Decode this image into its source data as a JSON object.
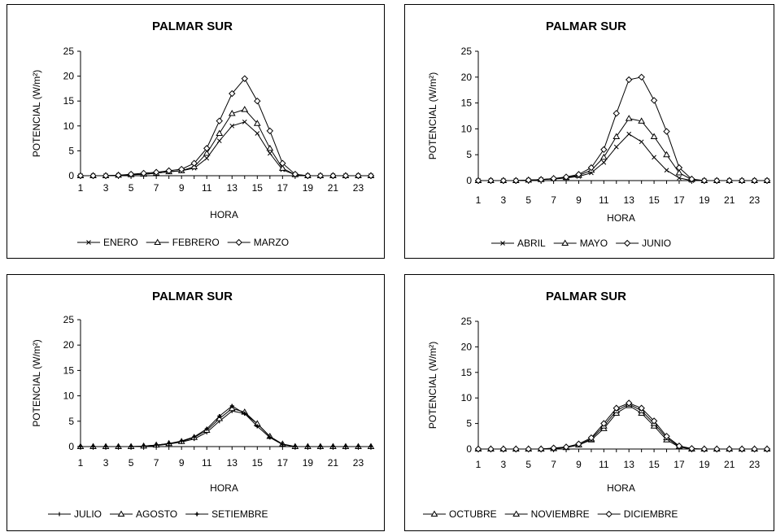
{
  "chart_data": [
    {
      "type": "line",
      "title": "PALMAR SUR",
      "xlabel": "HORA",
      "ylabel": "POTENCIAL (W/m²)",
      "ylim": [
        0,
        25
      ],
      "yticks": [
        "0",
        "5",
        "10",
        "15",
        "20",
        "25"
      ],
      "x": [
        1,
        2,
        3,
        4,
        5,
        6,
        7,
        8,
        9,
        10,
        11,
        12,
        13,
        14,
        15,
        16,
        17,
        18,
        19,
        20,
        21,
        22,
        23,
        24
      ],
      "xticks": [
        "1",
        "3",
        "5",
        "7",
        "9",
        "11",
        "13",
        "15",
        "17",
        "19",
        "21",
        "23"
      ],
      "grid": false,
      "legend": "bottom",
      "series": [
        {
          "name": "ENERO",
          "marker": "x",
          "values": [
            0,
            0,
            0,
            0.1,
            0.2,
            0.3,
            0.5,
            0.8,
            1.0,
            1.5,
            3.5,
            7.0,
            10.0,
            10.8,
            8.5,
            4.5,
            1.2,
            0.2,
            0,
            0,
            0,
            0,
            0,
            0
          ]
        },
        {
          "name": "FEBRERO",
          "marker": "triangle",
          "values": [
            0,
            0,
            0,
            0.1,
            0.2,
            0.3,
            0.5,
            0.8,
            1.0,
            1.8,
            4.5,
            8.5,
            12.5,
            13.3,
            10.5,
            5.5,
            1.5,
            0.2,
            0,
            0,
            0,
            0,
            0,
            0
          ]
        },
        {
          "name": "MARZO",
          "marker": "diamond",
          "values": [
            0,
            0,
            0,
            0.1,
            0.3,
            0.5,
            0.7,
            1.0,
            1.3,
            2.5,
            5.5,
            11.0,
            16.5,
            19.5,
            15.0,
            9.0,
            2.5,
            0.3,
            0,
            0,
            0,
            0,
            0,
            0
          ]
        }
      ]
    },
    {
      "type": "line",
      "title": "PALMAR SUR",
      "xlabel": "HORA",
      "ylabel": "POTENCIAL (W/m²)",
      "ylim": [
        0,
        25
      ],
      "yticks": [
        "0",
        "5",
        "10",
        "15",
        "20",
        "25"
      ],
      "x": [
        1,
        2,
        3,
        4,
        5,
        6,
        7,
        8,
        9,
        10,
        11,
        12,
        13,
        14,
        15,
        16,
        17,
        18,
        19,
        20,
        21,
        22,
        23,
        24
      ],
      "xticks": [
        "1",
        "3",
        "5",
        "7",
        "9",
        "11",
        "13",
        "15",
        "17",
        "19",
        "21",
        "23"
      ],
      "grid": false,
      "legend": "bottom",
      "series": [
        {
          "name": "ABRIL",
          "marker": "x",
          "values": [
            0,
            0,
            0,
            0,
            0.1,
            0.2,
            0.3,
            0.5,
            0.8,
            1.5,
            3.5,
            6.5,
            9.0,
            7.5,
            4.5,
            2.0,
            0.5,
            0,
            0,
            0,
            0,
            0,
            0,
            0
          ]
        },
        {
          "name": "MAYO",
          "marker": "triangle",
          "values": [
            0,
            0,
            0,
            0,
            0.1,
            0.2,
            0.4,
            0.6,
            1.0,
            2.0,
            4.5,
            8.5,
            12.0,
            11.5,
            8.5,
            5.0,
            1.5,
            0.2,
            0,
            0,
            0,
            0,
            0,
            0
          ]
        },
        {
          "name": "JUNIO",
          "marker": "diamond",
          "values": [
            0,
            0,
            0,
            0,
            0.1,
            0.2,
            0.4,
            0.7,
            1.2,
            2.5,
            6.0,
            13.0,
            19.5,
            20.0,
            15.5,
            9.5,
            2.5,
            0.3,
            0,
            0,
            0,
            0,
            0,
            0
          ]
        }
      ]
    },
    {
      "type": "line",
      "title": "PALMAR SUR",
      "xlabel": "HORA",
      "ylabel": "POTENCIAL (W/m²)",
      "ylim": [
        0,
        25
      ],
      "yticks": [
        "0",
        "5",
        "10",
        "15",
        "20",
        "25"
      ],
      "x": [
        1,
        2,
        3,
        4,
        5,
        6,
        7,
        8,
        9,
        10,
        11,
        12,
        13,
        14,
        15,
        16,
        17,
        18,
        19,
        20,
        21,
        22,
        23,
        24
      ],
      "xticks": [
        "1",
        "3",
        "5",
        "7",
        "9",
        "11",
        "13",
        "15",
        "17",
        "19",
        "21",
        "23"
      ],
      "grid": false,
      "legend": "bottom",
      "series": [
        {
          "name": "JULIO",
          "marker": "tick",
          "values": [
            0,
            0,
            0,
            0,
            0,
            0,
            0.2,
            0.5,
            0.9,
            1.5,
            2.8,
            5.0,
            7.0,
            6.5,
            4.5,
            2.0,
            0.5,
            0,
            0,
            0,
            0,
            0,
            0,
            0
          ]
        },
        {
          "name": "AGOSTO",
          "marker": "triangle",
          "values": [
            0,
            0,
            0,
            0,
            0,
            0.1,
            0.3,
            0.6,
            1.0,
            1.8,
            3.2,
            5.5,
            7.5,
            6.8,
            4.5,
            2.0,
            0.5,
            0,
            0,
            0,
            0,
            0,
            0,
            0
          ]
        },
        {
          "name": "SETIEMBRE",
          "marker": "plus",
          "values": [
            0,
            0,
            0,
            0,
            0,
            0.1,
            0.3,
            0.6,
            1.1,
            1.9,
            3.5,
            6.0,
            8.0,
            6.5,
            4.0,
            1.8,
            0.4,
            0,
            0,
            0,
            0,
            0,
            0,
            0
          ]
        }
      ]
    },
    {
      "type": "line",
      "title": "PALMAR SUR",
      "xlabel": "HORA",
      "ylabel": "POTENCIAL (W/m²)",
      "ylim": [
        0,
        25
      ],
      "yticks": [
        "0",
        "5",
        "10",
        "15",
        "20",
        "25"
      ],
      "x": [
        1,
        2,
        3,
        4,
        5,
        6,
        7,
        8,
        9,
        10,
        11,
        12,
        13,
        14,
        15,
        16,
        17,
        18,
        19,
        20,
        21,
        22,
        23,
        24
      ],
      "xticks": [
        "1",
        "3",
        "5",
        "7",
        "9",
        "11",
        "13",
        "15",
        "17",
        "19",
        "21",
        "23"
      ],
      "grid": false,
      "legend": "bottom",
      "series": [
        {
          "name": "OCTUBRE",
          "marker": "triangle",
          "values": [
            0,
            0,
            0,
            0,
            0,
            0,
            0.1,
            0.3,
            0.8,
            1.8,
            4.0,
            7.0,
            8.5,
            7.0,
            4.5,
            1.8,
            0.4,
            0,
            0,
            0,
            0,
            0,
            0,
            0
          ]
        },
        {
          "name": "NOVIEMBRE",
          "marker": "triangle",
          "values": [
            0,
            0,
            0,
            0,
            0,
            0,
            0.1,
            0.3,
            0.8,
            2.0,
            4.5,
            7.5,
            8.8,
            7.5,
            5.0,
            2.2,
            0.5,
            0,
            0,
            0,
            0,
            0,
            0,
            0
          ]
        },
        {
          "name": "DICIEMBRE",
          "marker": "diamond",
          "values": [
            0,
            0,
            0,
            0,
            0,
            0,
            0.2,
            0.4,
            1.0,
            2.2,
            5.0,
            8.0,
            9.0,
            8.0,
            5.5,
            2.5,
            0.6,
            0.1,
            0,
            0,
            0,
            0,
            0,
            0
          ]
        }
      ]
    }
  ]
}
